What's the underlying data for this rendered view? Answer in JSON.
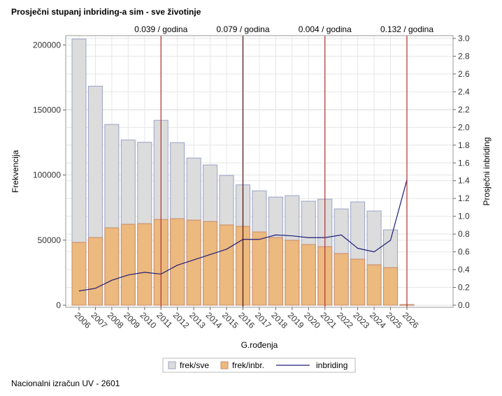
{
  "title": "Prosječni stupanj inbriding-a sim - sve životinje",
  "footnote": "Nacionalni izračun UV - 2601",
  "chart_data": {
    "type": "bar",
    "xlabel": "G.rođenja",
    "ylabel": "Frekvencija",
    "y2label": "Prosječni inbriding",
    "ylim": [
      0,
      205000
    ],
    "y2lim": [
      0,
      3.0
    ],
    "yticks": [
      0,
      50000,
      100000,
      150000,
      200000
    ],
    "y2ticks": [
      0.0,
      0.2,
      0.4,
      0.6,
      0.8,
      1.0,
      1.2,
      1.4,
      1.6,
      1.8,
      2.0,
      2.2,
      2.4,
      2.6,
      2.8,
      3.0
    ],
    "grid": true,
    "legend": "bottom",
    "categories": [
      "2006",
      "2007",
      "2008",
      "2009",
      "2010",
      "2011",
      "2012",
      "2013",
      "2014",
      "2015",
      "2016",
      "2017",
      "2018",
      "2019",
      "2020",
      "2021",
      "2022",
      "2023",
      "2024",
      "2025",
      "2026"
    ],
    "series": [
      {
        "name": "frek/sve",
        "kind": "bar",
        "axis": "left",
        "color": "#dcdcdc",
        "stroke": "#9ba3c9",
        "values": [
          204500,
          168300,
          138900,
          127000,
          125200,
          142100,
          124900,
          113100,
          107800,
          99700,
          92500,
          87900,
          83100,
          84200,
          79900,
          81500,
          74000,
          79400,
          72400,
          57900,
          500
        ]
      },
      {
        "name": "frek/inbr.",
        "kind": "bar",
        "axis": "left",
        "color": "#ecb97e",
        "stroke": "#c98a6a",
        "values": [
          48300,
          52000,
          59500,
          62200,
          62700,
          65900,
          66500,
          65400,
          64300,
          61700,
          60600,
          56300,
          52000,
          49900,
          46600,
          45000,
          39700,
          35400,
          31100,
          28900,
          500
        ]
      },
      {
        "name": "inbriding",
        "kind": "line",
        "axis": "right",
        "color": "#1e1e78",
        "values": [
          0.16,
          0.19,
          0.28,
          0.34,
          0.37,
          0.35,
          0.45,
          0.51,
          0.57,
          0.63,
          0.74,
          0.74,
          0.79,
          0.78,
          0.76,
          0.76,
          0.79,
          0.64,
          0.6,
          0.73,
          1.41
        ]
      }
    ],
    "reference_lines": [
      {
        "x": "2011",
        "label": "0.039 / godina",
        "color": "#b03030"
      },
      {
        "x": "2016",
        "label": "0.079 / godina",
        "color": "#4a0a0a"
      },
      {
        "x": "2021",
        "label": "0.004 / godina",
        "color": "#b03030"
      },
      {
        "x": "2026",
        "label": "0.132 / godina",
        "color": "#b03030"
      }
    ]
  }
}
